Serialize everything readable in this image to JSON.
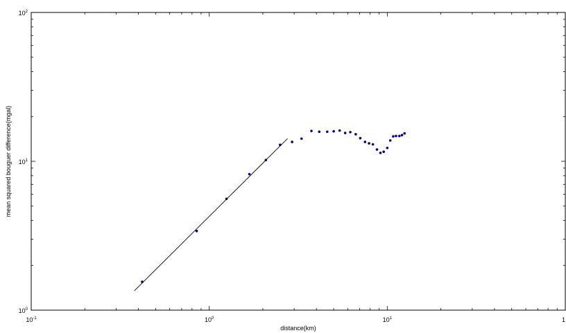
{
  "chart_data": {
    "type": "scatter",
    "title": "",
    "xlabel": "distance(km)",
    "ylabel": "mean squared bouguer difference(mgal)",
    "xscale": "log",
    "yscale": "log",
    "xlim": [
      0.1,
      100
    ],
    "ylim": [
      1,
      100
    ],
    "grid": false,
    "legend": "none",
    "x_ticks": [
      {
        "base": "10",
        "exp": "-1",
        "value": 0.1
      },
      {
        "base": "10",
        "exp": "0",
        "value": 1
      },
      {
        "base": "10",
        "exp": "1",
        "value": 10
      },
      {
        "base": "1",
        "exp": "",
        "value": 100
      }
    ],
    "y_ticks": [
      {
        "base": "10",
        "exp": "0",
        "value": 1
      },
      {
        "base": "10",
        "exp": "1",
        "value": 10
      },
      {
        "base": "10",
        "exp": "2",
        "value": 100
      }
    ],
    "series": [
      {
        "type": "scatter",
        "color": "#00008b",
        "x": [
          0.42,
          0.85,
          1.25,
          1.68,
          2.08,
          2.5,
          2.92,
          3.3,
          3.75,
          4.15,
          4.6,
          5.0,
          5.4,
          5.8,
          6.2,
          6.65,
          7.05,
          7.5,
          7.9,
          8.3,
          8.75,
          9.15,
          9.55,
          10.0,
          10.4,
          10.8,
          11.2,
          11.7,
          12.1,
          12.5
        ],
        "y": [
          1.55,
          3.4,
          5.6,
          8.2,
          10.2,
          12.9,
          13.5,
          14.2,
          16.0,
          15.8,
          15.8,
          15.9,
          16.1,
          15.5,
          15.7,
          15.2,
          14.3,
          13.5,
          13.2,
          13.0,
          12.0,
          11.4,
          11.6,
          12.3,
          13.8,
          14.7,
          14.8,
          14.8,
          15.0,
          15.4
        ]
      },
      {
        "type": "line",
        "color": "#000000",
        "x": [
          0.38,
          2.75
        ],
        "y": [
          1.35,
          14.2
        ]
      }
    ]
  }
}
